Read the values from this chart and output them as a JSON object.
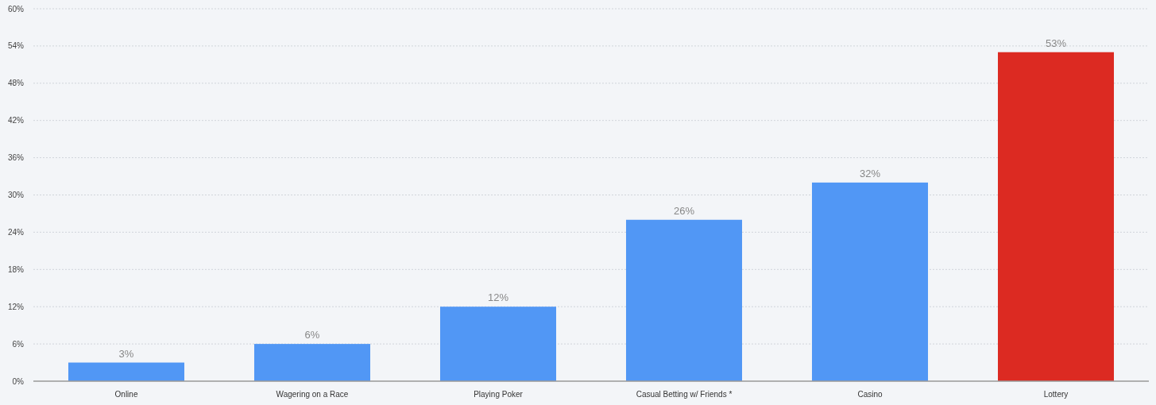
{
  "chart_data": {
    "type": "bar",
    "categories": [
      "Online",
      "Wagering on a Race",
      "Playing Poker",
      "Casual Betting w/ Friends *",
      "Casino",
      "Lottery"
    ],
    "values": [
      3,
      6,
      12,
      26,
      32,
      53
    ],
    "colors": [
      "#5197f5",
      "#5197f5",
      "#5197f5",
      "#5197f5",
      "#5197f5",
      "#dc2a22"
    ],
    "value_labels": [
      "3%",
      "6%",
      "12%",
      "26%",
      "32%",
      "53%"
    ],
    "ylim": [
      0,
      60
    ],
    "yticks": [
      {
        "value": 0,
        "label": "0%"
      },
      {
        "value": 6,
        "label": "6%"
      },
      {
        "value": 12,
        "label": "12%"
      },
      {
        "value": 18,
        "label": "18%"
      },
      {
        "value": 24,
        "label": "24%"
      },
      {
        "value": 30,
        "label": "30%"
      },
      {
        "value": 36,
        "label": "36%"
      },
      {
        "value": 42,
        "label": "42%"
      },
      {
        "value": 48,
        "label": "48%"
      },
      {
        "value": 54,
        "label": "54%"
      },
      {
        "value": 60,
        "label": "60%"
      }
    ],
    "grid": "y"
  }
}
